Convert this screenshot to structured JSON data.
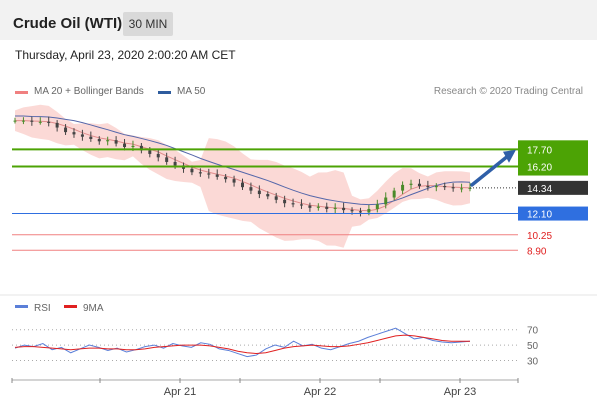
{
  "header": {
    "title": "Crude Oil (WTI)",
    "timeframe": "30 MIN"
  },
  "datetime": "Thursday, April 23, 2020 2:00:20 AM CET",
  "legend": {
    "ma_bb": "MA 20 + Bollinger Bands",
    "ma50": "MA 50",
    "research": "Research © 2020 Trading Central"
  },
  "rsi_legend": {
    "rsi": "RSI",
    "ma9": "9MA"
  },
  "colors": {
    "resistance": "#4ca305",
    "support": "#2f6fe0",
    "pivot": "#f08080",
    "current": "#333333",
    "bollinger": "#fad0cc",
    "ma50": "#5567aa",
    "ma20": "#e08c8c",
    "rsi": "#5b7fd8",
    "rsi_ma": "#e02020",
    "arrow": "#2f5fa8"
  },
  "chart_data": [
    {
      "type": "candlestick",
      "title": "Crude Oil (WTI)",
      "timeframe": "30 MIN",
      "ylim": [
        5.0,
        22.0
      ],
      "x_ticks": [
        "Apr 21",
        "Apr 22",
        "Apr 23"
      ],
      "levels": [
        {
          "value": 17.7,
          "label": "17.70",
          "kind": "resistance"
        },
        {
          "value": 16.2,
          "label": "16.20",
          "kind": "resistance"
        },
        {
          "value": 14.34,
          "label": "14.34",
          "kind": "current"
        },
        {
          "value": 12.1,
          "label": "12.10",
          "kind": "support"
        },
        {
          "value": 10.25,
          "label": "10.25",
          "kind": "pivot"
        },
        {
          "value": 8.9,
          "label": "8.90",
          "kind": "pivot"
        }
      ],
      "close_path": [
        20.2,
        20.2,
        20.1,
        20.1,
        20.0,
        19.6,
        19.2,
        19.0,
        18.8,
        18.6,
        18.4,
        18.5,
        18.2,
        17.9,
        18.0,
        17.6,
        17.3,
        17.0,
        16.6,
        16.3,
        16.0,
        15.7,
        15.6,
        15.5,
        15.3,
        15.1,
        14.8,
        14.4,
        14.1,
        13.8,
        13.6,
        13.3,
        13.0,
        12.9,
        12.8,
        12.6,
        12.7,
        12.5,
        12.6,
        12.4,
        12.3,
        12.2,
        12.5,
        12.9,
        13.5,
        14.1,
        14.6,
        14.7,
        14.5,
        14.4,
        14.5,
        14.4,
        14.3,
        14.3,
        14.34
      ],
      "series": [
        {
          "name": "MA 20 + Bollinger Bands"
        },
        {
          "name": "MA 50"
        }
      ]
    },
    {
      "type": "line",
      "series": [
        {
          "name": "RSI"
        },
        {
          "name": "9MA"
        }
      ],
      "y_ticks": [
        "70",
        "50",
        "30"
      ],
      "ylim": [
        15,
        80
      ],
      "rsi_path": [
        46,
        50,
        48,
        52,
        44,
        47,
        40,
        45,
        50,
        47,
        43,
        46,
        41,
        44,
        48,
        50,
        46,
        52,
        49,
        47,
        53,
        51,
        45,
        43,
        39,
        35,
        37,
        45,
        50,
        47,
        55,
        49,
        51,
        46,
        44,
        48,
        52,
        55,
        60,
        64,
        68,
        72,
        65,
        58,
        60,
        56,
        54,
        53,
        54,
        55
      ],
      "ma_path": [
        47,
        48,
        48,
        47,
        46,
        45,
        44,
        45,
        46,
        46,
        45,
        45,
        44,
        44,
        45,
        47,
        48,
        49,
        50,
        50,
        50,
        49,
        47,
        45,
        42,
        40,
        39,
        40,
        43,
        46,
        48,
        49,
        50,
        49,
        48,
        48,
        49,
        51,
        53,
        56,
        59,
        62,
        63,
        62,
        60,
        58,
        56,
        55,
        55,
        55
      ]
    }
  ]
}
